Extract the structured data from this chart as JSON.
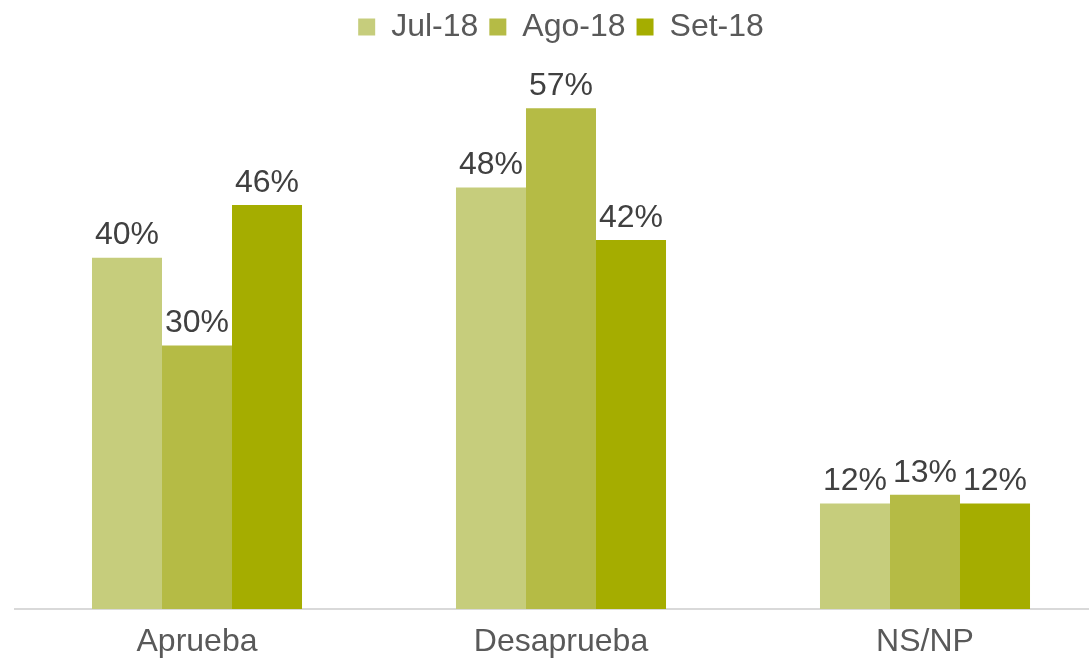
{
  "chart_data": {
    "type": "bar",
    "categories": [
      "Aprueba",
      "Desaprueba",
      "NS/NP"
    ],
    "series": [
      {
        "name": "Jul-18",
        "color": "#c6cd7c",
        "values": [
          40,
          48,
          12
        ],
        "value_labels": [
          "40%",
          "48%",
          "12%"
        ]
      },
      {
        "name": "Ago-18",
        "color": "#b5bb45",
        "values": [
          30,
          57,
          13
        ],
        "value_labels": [
          "30%",
          "57%",
          "13%"
        ]
      },
      {
        "name": "Set-18",
        "color": "#a5ad00",
        "values": [
          46,
          42,
          12
        ],
        "value_labels": [
          "46%",
          "42%",
          "12%"
        ]
      }
    ],
    "legend": "top",
    "tick_labels": "x"
  }
}
